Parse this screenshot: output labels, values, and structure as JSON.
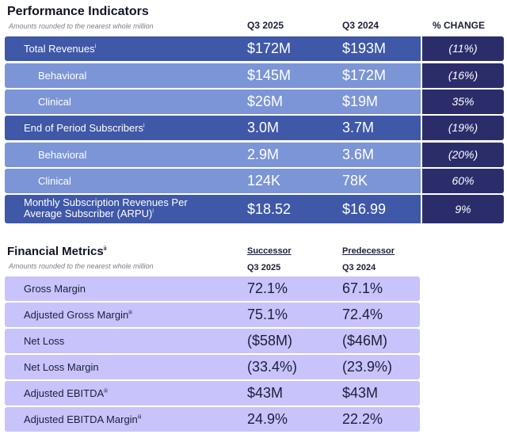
{
  "performance": {
    "title": "Performance Indicators",
    "subtitle": "Amounts rounded to the nearest whole million",
    "headers": {
      "col1": "Q3 2025",
      "col2": "Q3 2024",
      "col3": "% CHANGE"
    },
    "rows": [
      {
        "label": "Total Revenues",
        "sup": "i",
        "v1": "$172M",
        "v2": "$193M",
        "chg": "(11%)"
      },
      {
        "label": "Behavioral",
        "sup": "",
        "v1": "$145M",
        "v2": "$172M",
        "chg": "(16%)"
      },
      {
        "label": "Clinical",
        "sup": "",
        "v1": "$26M",
        "v2": "$19M",
        "chg": "35%"
      },
      {
        "label": "End of Period Subscribers",
        "sup": "i",
        "v1": "3.0M",
        "v2": "3.7M",
        "chg": "(19%)"
      },
      {
        "label": "Behavioral",
        "sup": "",
        "v1": "2.9M",
        "v2": "3.6M",
        "chg": "(20%)"
      },
      {
        "label": "Clinical",
        "sup": "",
        "v1": "124K",
        "v2": "78K",
        "chg": "60%"
      },
      {
        "label_line1": "Monthly Subscription Revenues Per",
        "label_line2": "Average Subscriber (ARPU)",
        "sup": "i",
        "v1": "$18.52",
        "v2": "$16.99",
        "chg": "9%"
      }
    ]
  },
  "financial": {
    "title": "Financial Metrics",
    "title_sup": "ii",
    "subtitle": "Amounts rounded to the nearest whole million",
    "headers": {
      "col1_top": "Successor",
      "col1": "Q3 2025",
      "col2_top": "Predecessor",
      "col2": "Q3 2024"
    },
    "rows": [
      {
        "label": "Gross Margin",
        "sup": "",
        "v1": "72.1%",
        "v2": "67.1%"
      },
      {
        "label": "Adjusted Gross Margin",
        "sup": "iii",
        "v1": "75.1%",
        "v2": "72.4%"
      },
      {
        "label": "Net Loss",
        "sup": "",
        "v1": "($58M)",
        "v2": "($46M)"
      },
      {
        "label": "Net Loss Margin",
        "sup": "",
        "v1": "(33.4%)",
        "v2": "(23.9%)"
      },
      {
        "label": "Adjusted EBITDA",
        "sup": "iii",
        "v1": "$43M",
        "v2": "$43M"
      },
      {
        "label": "Adjusted EBITDA Margin",
        "sup": "iii",
        "v1": "24.9%",
        "v2": "22.2%"
      }
    ]
  },
  "colors": {
    "dark_row": "#3f58a8",
    "light_row": "#7b95d6",
    "change_col": "#2b2d6b",
    "financial_row": "#c9c3fb"
  }
}
